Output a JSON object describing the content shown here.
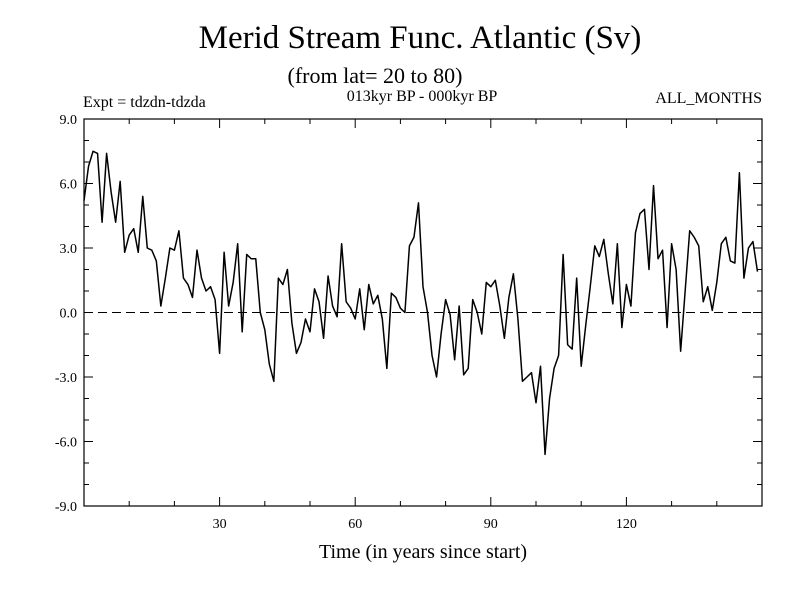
{
  "chart_data": {
    "type": "line",
    "title": "Merid Stream Func. Atlantic (Sv)",
    "subtitle": "(from lat= 20 to 80)",
    "expt_label": "Expt = tdzdn-tdzda",
    "period_label": "013kyr BP - 000kyr BP",
    "months_label": "ALL_MONTHS",
    "xlabel": "Time (in years since start)",
    "ylabel": "",
    "xlim": [
      0,
      150
    ],
    "ylim": [
      -9,
      9
    ],
    "x_ticks": [
      30,
      60,
      90,
      120
    ],
    "x_tick_labels": [
      "30",
      "60",
      "90",
      "120"
    ],
    "y_ticks": [
      -9,
      -6,
      -3,
      0,
      3,
      6,
      9
    ],
    "y_tick_labels": [
      "-9.0",
      "-6.0",
      "-3.0",
      "0.0",
      "3.0",
      "6.0",
      "9.0"
    ],
    "zero_line": "dashed",
    "series": [
      {
        "name": "Merid Stream Func.",
        "x_start": 0,
        "x_step": 1,
        "values": [
          5.2,
          6.8,
          7.5,
          7.4,
          4.2,
          7.4,
          5.6,
          4.2,
          6.1,
          2.8,
          3.6,
          3.9,
          2.8,
          5.4,
          3.0,
          2.9,
          2.4,
          0.3,
          1.6,
          3.0,
          2.9,
          3.8,
          1.6,
          1.3,
          0.7,
          2.9,
          1.6,
          1.0,
          1.2,
          0.6,
          -1.9,
          2.8,
          0.3,
          1.4,
          3.2,
          -0.9,
          2.7,
          2.5,
          2.5,
          0.0,
          -0.8,
          -2.4,
          -3.2,
          1.6,
          1.3,
          2.0,
          -0.5,
          -1.9,
          -1.4,
          -0.3,
          -0.9,
          1.1,
          0.5,
          -1.2,
          1.7,
          0.3,
          -0.2,
          3.2,
          0.5,
          0.2,
          -0.3,
          1.1,
          -0.8,
          1.3,
          0.4,
          0.8,
          -0.3,
          -2.6,
          0.9,
          0.7,
          0.2,
          0.0,
          3.1,
          3.5,
          5.1,
          1.2,
          0.0,
          -2.0,
          -3.0,
          -1.0,
          0.6,
          -0.1,
          -2.2,
          0.3,
          -2.9,
          -2.6,
          0.6,
          0.0,
          -1.0,
          1.4,
          1.2,
          1.5,
          0.3,
          -1.2,
          0.7,
          1.8,
          -0.3,
          -3.2,
          -3.0,
          -2.8,
          -4.2,
          -2.5,
          -6.6,
          -4.0,
          -2.6,
          -2.0,
          2.7,
          -1.5,
          -1.7,
          1.6,
          -2.5,
          -0.6,
          1.2,
          3.1,
          2.6,
          3.4,
          1.8,
          0.4,
          3.2,
          -0.7,
          1.3,
          0.3,
          3.7,
          4.6,
          4.8,
          2.0,
          5.9,
          2.5,
          2.9,
          -0.7,
          3.2,
          2.0,
          -1.8,
          1.0,
          3.8,
          3.5,
          3.1,
          0.5,
          1.2,
          0.1,
          1.4,
          3.2,
          3.5,
          2.4,
          2.3,
          6.5,
          1.6,
          3.0,
          3.3,
          1.9
        ]
      }
    ]
  }
}
